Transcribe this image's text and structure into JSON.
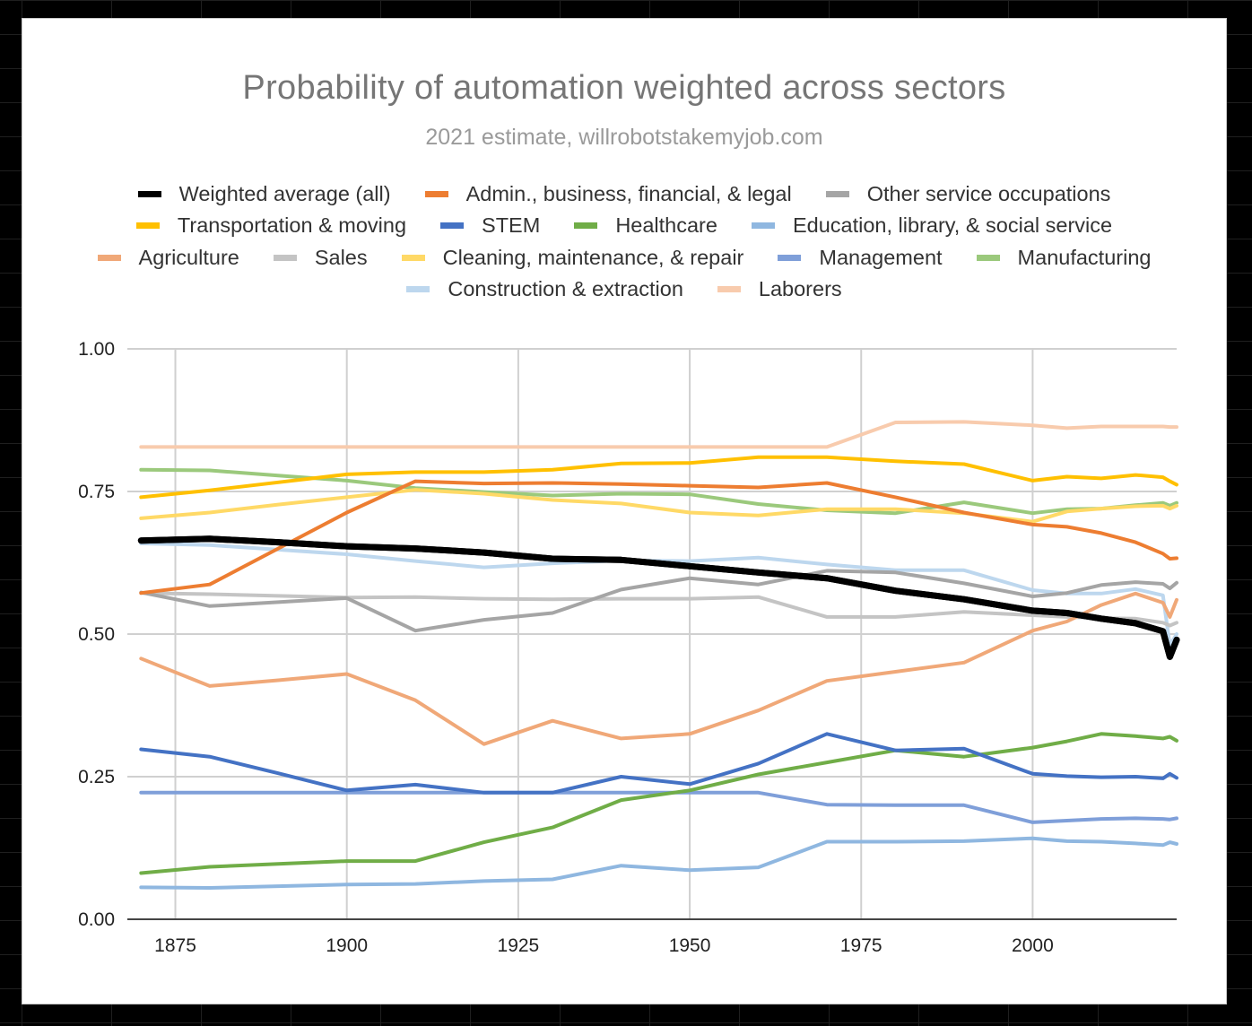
{
  "chart_data": {
    "type": "line",
    "title": "Probability of automation weighted across sectors",
    "subtitle": "2021 estimate, willrobotstakemyjob.com",
    "xlim": [
      1868,
      2021
    ],
    "ylim": [
      0,
      1
    ],
    "x_ticks": [
      1875,
      1900,
      1925,
      1950,
      1975,
      2000
    ],
    "x_tick_labels": [
      "1875",
      "1900",
      "1925",
      "1950",
      "1975",
      "2000"
    ],
    "y_ticks": [
      0,
      0.25,
      0.5,
      0.75,
      1
    ],
    "y_tick_labels": [
      "0.00",
      "0.25",
      "0.50",
      "0.75",
      "1.00"
    ],
    "grid": true,
    "legend_position": "top",
    "legend_rows": [
      [
        0,
        1,
        2
      ],
      [
        3,
        4,
        5,
        6
      ],
      [
        7,
        8,
        9,
        10,
        11
      ],
      [
        12,
        13
      ]
    ],
    "series": [
      {
        "name": "Weighted average (all)",
        "color": "#000000",
        "width": 7,
        "points": [
          [
            1870,
            0.664
          ],
          [
            1880,
            0.667
          ],
          [
            1890,
            0.661
          ],
          [
            1900,
            0.654
          ],
          [
            1910,
            0.65
          ],
          [
            1920,
            0.643
          ],
          [
            1930,
            0.632
          ],
          [
            1940,
            0.63
          ],
          [
            1950,
            0.619
          ],
          [
            1960,
            0.608
          ],
          [
            1970,
            0.598
          ],
          [
            1980,
            0.576
          ],
          [
            1990,
            0.561
          ],
          [
            2000,
            0.541
          ],
          [
            2005,
            0.537
          ],
          [
            2010,
            0.527
          ],
          [
            2015,
            0.519
          ],
          [
            2019,
            0.505
          ],
          [
            2020,
            0.46
          ],
          [
            2021,
            0.49
          ]
        ]
      },
      {
        "name": "Admin., business, financial, & legal",
        "color": "#ed7d31",
        "width": 4,
        "points": [
          [
            1870,
            0.572
          ],
          [
            1880,
            0.587
          ],
          [
            1890,
            0.65
          ],
          [
            1900,
            0.713
          ],
          [
            1910,
            0.768
          ],
          [
            1920,
            0.764
          ],
          [
            1930,
            0.765
          ],
          [
            1940,
            0.763
          ],
          [
            1950,
            0.76
          ],
          [
            1960,
            0.757
          ],
          [
            1970,
            0.765
          ],
          [
            1980,
            0.74
          ],
          [
            1990,
            0.713
          ],
          [
            2000,
            0.692
          ],
          [
            2005,
            0.688
          ],
          [
            2010,
            0.677
          ],
          [
            2015,
            0.661
          ],
          [
            2019,
            0.641
          ],
          [
            2020,
            0.632
          ],
          [
            2021,
            0.633
          ]
        ]
      },
      {
        "name": "Other service occupations",
        "color": "#a5a5a5",
        "width": 4,
        "points": [
          [
            1870,
            0.573
          ],
          [
            1880,
            0.549
          ],
          [
            1890,
            0.556
          ],
          [
            1900,
            0.563
          ],
          [
            1910,
            0.506
          ],
          [
            1920,
            0.525
          ],
          [
            1930,
            0.537
          ],
          [
            1940,
            0.578
          ],
          [
            1950,
            0.598
          ],
          [
            1960,
            0.587
          ],
          [
            1970,
            0.611
          ],
          [
            1980,
            0.608
          ],
          [
            1990,
            0.589
          ],
          [
            2000,
            0.566
          ],
          [
            2005,
            0.572
          ],
          [
            2010,
            0.586
          ],
          [
            2015,
            0.591
          ],
          [
            2019,
            0.588
          ],
          [
            2020,
            0.58
          ],
          [
            2021,
            0.59
          ]
        ]
      },
      {
        "name": "Transportation & moving",
        "color": "#ffc000",
        "width": 4,
        "points": [
          [
            1870,
            0.74
          ],
          [
            1880,
            0.752
          ],
          [
            1890,
            0.766
          ],
          [
            1900,
            0.78
          ],
          [
            1910,
            0.784
          ],
          [
            1920,
            0.784
          ],
          [
            1930,
            0.788
          ],
          [
            1940,
            0.799
          ],
          [
            1950,
            0.8
          ],
          [
            1960,
            0.81
          ],
          [
            1970,
            0.81
          ],
          [
            1980,
            0.803
          ],
          [
            1990,
            0.798
          ],
          [
            2000,
            0.769
          ],
          [
            2005,
            0.776
          ],
          [
            2010,
            0.773
          ],
          [
            2015,
            0.779
          ],
          [
            2019,
            0.775
          ],
          [
            2020,
            0.768
          ],
          [
            2021,
            0.762
          ]
        ]
      },
      {
        "name": "STEM",
        "color": "#4472c4",
        "width": 4,
        "points": [
          [
            1870,
            0.298
          ],
          [
            1880,
            0.285
          ],
          [
            1890,
            0.256
          ],
          [
            1900,
            0.226
          ],
          [
            1910,
            0.236
          ],
          [
            1920,
            0.222
          ],
          [
            1930,
            0.222
          ],
          [
            1940,
            0.25
          ],
          [
            1950,
            0.237
          ],
          [
            1960,
            0.273
          ],
          [
            1970,
            0.325
          ],
          [
            1980,
            0.296
          ],
          [
            1990,
            0.299
          ],
          [
            2000,
            0.255
          ],
          [
            2005,
            0.251
          ],
          [
            2010,
            0.249
          ],
          [
            2015,
            0.25
          ],
          [
            2019,
            0.247
          ],
          [
            2020,
            0.255
          ],
          [
            2021,
            0.248
          ]
        ]
      },
      {
        "name": "Healthcare",
        "color": "#70ad47",
        "width": 4,
        "points": [
          [
            1870,
            0.081
          ],
          [
            1880,
            0.092
          ],
          [
            1890,
            0.097
          ],
          [
            1900,
            0.102
          ],
          [
            1910,
            0.102
          ],
          [
            1920,
            0.135
          ],
          [
            1930,
            0.161
          ],
          [
            1940,
            0.209
          ],
          [
            1950,
            0.226
          ],
          [
            1960,
            0.254
          ],
          [
            1970,
            0.275
          ],
          [
            1980,
            0.296
          ],
          [
            1990,
            0.285
          ],
          [
            2000,
            0.301
          ],
          [
            2005,
            0.312
          ],
          [
            2010,
            0.325
          ],
          [
            2015,
            0.321
          ],
          [
            2019,
            0.317
          ],
          [
            2020,
            0.32
          ],
          [
            2021,
            0.313
          ]
        ]
      },
      {
        "name": "Education, library, & social service",
        "color": "#8fb7e0",
        "width": 4,
        "points": [
          [
            1870,
            0.056
          ],
          [
            1880,
            0.055
          ],
          [
            1890,
            0.058
          ],
          [
            1900,
            0.061
          ],
          [
            1910,
            0.062
          ],
          [
            1920,
            0.067
          ],
          [
            1930,
            0.07
          ],
          [
            1940,
            0.094
          ],
          [
            1950,
            0.086
          ],
          [
            1960,
            0.091
          ],
          [
            1970,
            0.136
          ],
          [
            1980,
            0.136
          ],
          [
            1990,
            0.137
          ],
          [
            2000,
            0.142
          ],
          [
            2005,
            0.137
          ],
          [
            2010,
            0.136
          ],
          [
            2015,
            0.133
          ],
          [
            2019,
            0.13
          ],
          [
            2020,
            0.135
          ],
          [
            2021,
            0.132
          ]
        ]
      },
      {
        "name": "Agriculture",
        "color": "#f0a878",
        "width": 4,
        "points": [
          [
            1870,
            0.457
          ],
          [
            1880,
            0.409
          ],
          [
            1890,
            0.419
          ],
          [
            1900,
            0.43
          ],
          [
            1910,
            0.384
          ],
          [
            1920,
            0.307
          ],
          [
            1930,
            0.348
          ],
          [
            1940,
            0.317
          ],
          [
            1950,
            0.325
          ],
          [
            1960,
            0.366
          ],
          [
            1970,
            0.418
          ],
          [
            1980,
            0.434
          ],
          [
            1990,
            0.45
          ],
          [
            2000,
            0.506
          ],
          [
            2005,
            0.522
          ],
          [
            2010,
            0.551
          ],
          [
            2015,
            0.571
          ],
          [
            2019,
            0.555
          ],
          [
            2020,
            0.53
          ],
          [
            2021,
            0.56
          ]
        ]
      },
      {
        "name": "Sales",
        "color": "#c4c4c4",
        "width": 4,
        "points": [
          [
            1870,
            0.572
          ],
          [
            1880,
            0.57
          ],
          [
            1890,
            0.567
          ],
          [
            1900,
            0.564
          ],
          [
            1910,
            0.565
          ],
          [
            1920,
            0.562
          ],
          [
            1930,
            0.561
          ],
          [
            1940,
            0.562
          ],
          [
            1950,
            0.562
          ],
          [
            1960,
            0.565
          ],
          [
            1970,
            0.53
          ],
          [
            1980,
            0.53
          ],
          [
            1990,
            0.539
          ],
          [
            2000,
            0.533
          ],
          [
            2005,
            0.53
          ],
          [
            2010,
            0.528
          ],
          [
            2015,
            0.527
          ],
          [
            2019,
            0.52
          ],
          [
            2020,
            0.515
          ],
          [
            2021,
            0.52
          ]
        ]
      },
      {
        "name": "Cleaning, maintenance, & repair",
        "color": "#ffd966",
        "width": 4,
        "points": [
          [
            1870,
            0.703
          ],
          [
            1880,
            0.713
          ],
          [
            1890,
            0.727
          ],
          [
            1900,
            0.74
          ],
          [
            1910,
            0.753
          ],
          [
            1920,
            0.746
          ],
          [
            1930,
            0.735
          ],
          [
            1940,
            0.729
          ],
          [
            1950,
            0.713
          ],
          [
            1960,
            0.708
          ],
          [
            1970,
            0.719
          ],
          [
            1980,
            0.719
          ],
          [
            1990,
            0.712
          ],
          [
            2000,
            0.697
          ],
          [
            2005,
            0.715
          ],
          [
            2010,
            0.72
          ],
          [
            2015,
            0.724
          ],
          [
            2019,
            0.725
          ],
          [
            2020,
            0.72
          ],
          [
            2021,
            0.725
          ]
        ]
      },
      {
        "name": "Management",
        "color": "#7f9fd9",
        "width": 4,
        "points": [
          [
            1870,
            0.222
          ],
          [
            1880,
            0.222
          ],
          [
            1890,
            0.222
          ],
          [
            1900,
            0.222
          ],
          [
            1910,
            0.222
          ],
          [
            1920,
            0.222
          ],
          [
            1930,
            0.222
          ],
          [
            1940,
            0.222
          ],
          [
            1950,
            0.222
          ],
          [
            1960,
            0.222
          ],
          [
            1970,
            0.201
          ],
          [
            1980,
            0.2
          ],
          [
            1990,
            0.2
          ],
          [
            2000,
            0.17
          ],
          [
            2005,
            0.173
          ],
          [
            2010,
            0.176
          ],
          [
            2015,
            0.177
          ],
          [
            2019,
            0.176
          ],
          [
            2020,
            0.175
          ],
          [
            2021,
            0.177
          ]
        ]
      },
      {
        "name": "Manufacturing",
        "color": "#9bc97c",
        "width": 4,
        "points": [
          [
            1870,
            0.788
          ],
          [
            1880,
            0.787
          ],
          [
            1890,
            0.778
          ],
          [
            1900,
            0.769
          ],
          [
            1910,
            0.756
          ],
          [
            1920,
            0.749
          ],
          [
            1930,
            0.743
          ],
          [
            1940,
            0.746
          ],
          [
            1950,
            0.745
          ],
          [
            1960,
            0.728
          ],
          [
            1970,
            0.717
          ],
          [
            1980,
            0.712
          ],
          [
            1990,
            0.731
          ],
          [
            2000,
            0.712
          ],
          [
            2005,
            0.719
          ],
          [
            2010,
            0.72
          ],
          [
            2015,
            0.726
          ],
          [
            2019,
            0.73
          ],
          [
            2020,
            0.725
          ],
          [
            2021,
            0.73
          ]
        ]
      },
      {
        "name": "Construction & extraction",
        "color": "#bdd7ee",
        "width": 4,
        "points": [
          [
            1870,
            0.659
          ],
          [
            1880,
            0.656
          ],
          [
            1890,
            0.648
          ],
          [
            1900,
            0.64
          ],
          [
            1910,
            0.628
          ],
          [
            1920,
            0.617
          ],
          [
            1930,
            0.624
          ],
          [
            1940,
            0.629
          ],
          [
            1950,
            0.628
          ],
          [
            1960,
            0.634
          ],
          [
            1970,
            0.622
          ],
          [
            1980,
            0.612
          ],
          [
            1990,
            0.612
          ],
          [
            2000,
            0.577
          ],
          [
            2005,
            0.571
          ],
          [
            2010,
            0.571
          ],
          [
            2015,
            0.579
          ],
          [
            2019,
            0.568
          ],
          [
            2020,
            0.48
          ],
          [
            2021,
            0.5
          ]
        ]
      },
      {
        "name": "Laborers",
        "color": "#f8cbad",
        "width": 4,
        "points": [
          [
            1870,
            0.828
          ],
          [
            1880,
            0.828
          ],
          [
            1890,
            0.828
          ],
          [
            1900,
            0.828
          ],
          [
            1910,
            0.828
          ],
          [
            1920,
            0.828
          ],
          [
            1930,
            0.828
          ],
          [
            1940,
            0.828
          ],
          [
            1950,
            0.828
          ],
          [
            1960,
            0.828
          ],
          [
            1970,
            0.828
          ],
          [
            1980,
            0.871
          ],
          [
            1990,
            0.872
          ],
          [
            2000,
            0.866
          ],
          [
            2005,
            0.861
          ],
          [
            2010,
            0.864
          ],
          [
            2015,
            0.864
          ],
          [
            2019,
            0.864
          ],
          [
            2020,
            0.863
          ],
          [
            2021,
            0.863
          ]
        ]
      }
    ]
  }
}
